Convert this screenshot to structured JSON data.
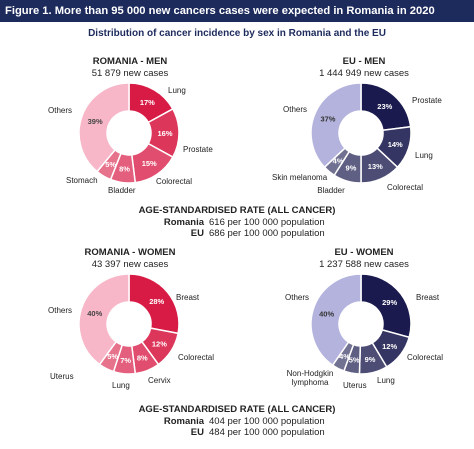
{
  "figure_title": "Figure 1. More than 95 000 new cancers cases were expected in Romania in 2020",
  "subtitle": "Distribution of cancer incidence by sex in Romania and the EU",
  "colors": {
    "title_bar": "#1c2a5c",
    "romania_main": "#d81b45",
    "romania_others": "#f7b7c9",
    "eu_main": "#1a1a4e",
    "eu_others": "#b3b3dd"
  },
  "chart_data": [
    {
      "type": "pie",
      "title": "ROMANIA - MEN",
      "subtitle": "51 879 new cases",
      "palette": "romania",
      "categories": [
        "Lung",
        "Prostate",
        "Colorectal",
        "Bladder",
        "Stomach",
        "Others"
      ],
      "values": [
        17,
        16,
        15,
        8,
        5,
        39
      ],
      "data_labels": [
        "17%",
        "16%",
        "15%",
        "8%",
        "5%",
        "39%"
      ]
    },
    {
      "type": "pie",
      "title": "EU - MEN",
      "subtitle": "1 444 949 new cases",
      "palette": "eu",
      "categories": [
        "Prostate",
        "Lung",
        "Colorectal",
        "Bladder",
        "Skin melanoma",
        "Others"
      ],
      "values": [
        23,
        14,
        13,
        9,
        4,
        37
      ],
      "data_labels": [
        "23%",
        "14%",
        "13%",
        "9%",
        "4%",
        "37%"
      ]
    },
    {
      "type": "pie",
      "title": "ROMANIA - WOMEN",
      "subtitle": "43 397 new cases",
      "palette": "romania",
      "categories": [
        "Breast",
        "Colorectal",
        "Cervix",
        "Lung",
        "Uterus",
        "Others"
      ],
      "values": [
        28,
        12,
        8,
        7,
        5,
        40
      ],
      "data_labels": [
        "28%",
        "12%",
        "8%",
        "7%",
        "5%",
        "40%"
      ]
    },
    {
      "type": "pie",
      "title": "EU - WOMEN",
      "subtitle": "1 237 588 new cases",
      "palette": "eu",
      "categories": [
        "Breast",
        "Colorectal",
        "Lung",
        "Uterus",
        "Non-Hodgkin lymphoma",
        "Others"
      ],
      "values": [
        29,
        12,
        9,
        5,
        4,
        40
      ],
      "data_labels": [
        "29%",
        "12%",
        "9%",
        "5%",
        "4%",
        "40%"
      ]
    }
  ],
  "asr_men": {
    "title": "AGE-STANDARDISED RATE (ALL CANCER)",
    "romania_label": "Romania",
    "romania_value": "616 per 100 000 population",
    "eu_label": "EU",
    "eu_value": "686 per 100 000 population"
  },
  "asr_women": {
    "title": "AGE-STANDARDISED RATE (ALL CANCER)",
    "romania_label": "Romania",
    "romania_value": "404 per 100 000 population",
    "eu_label": "EU",
    "eu_value": "484 per 100 000 population"
  }
}
